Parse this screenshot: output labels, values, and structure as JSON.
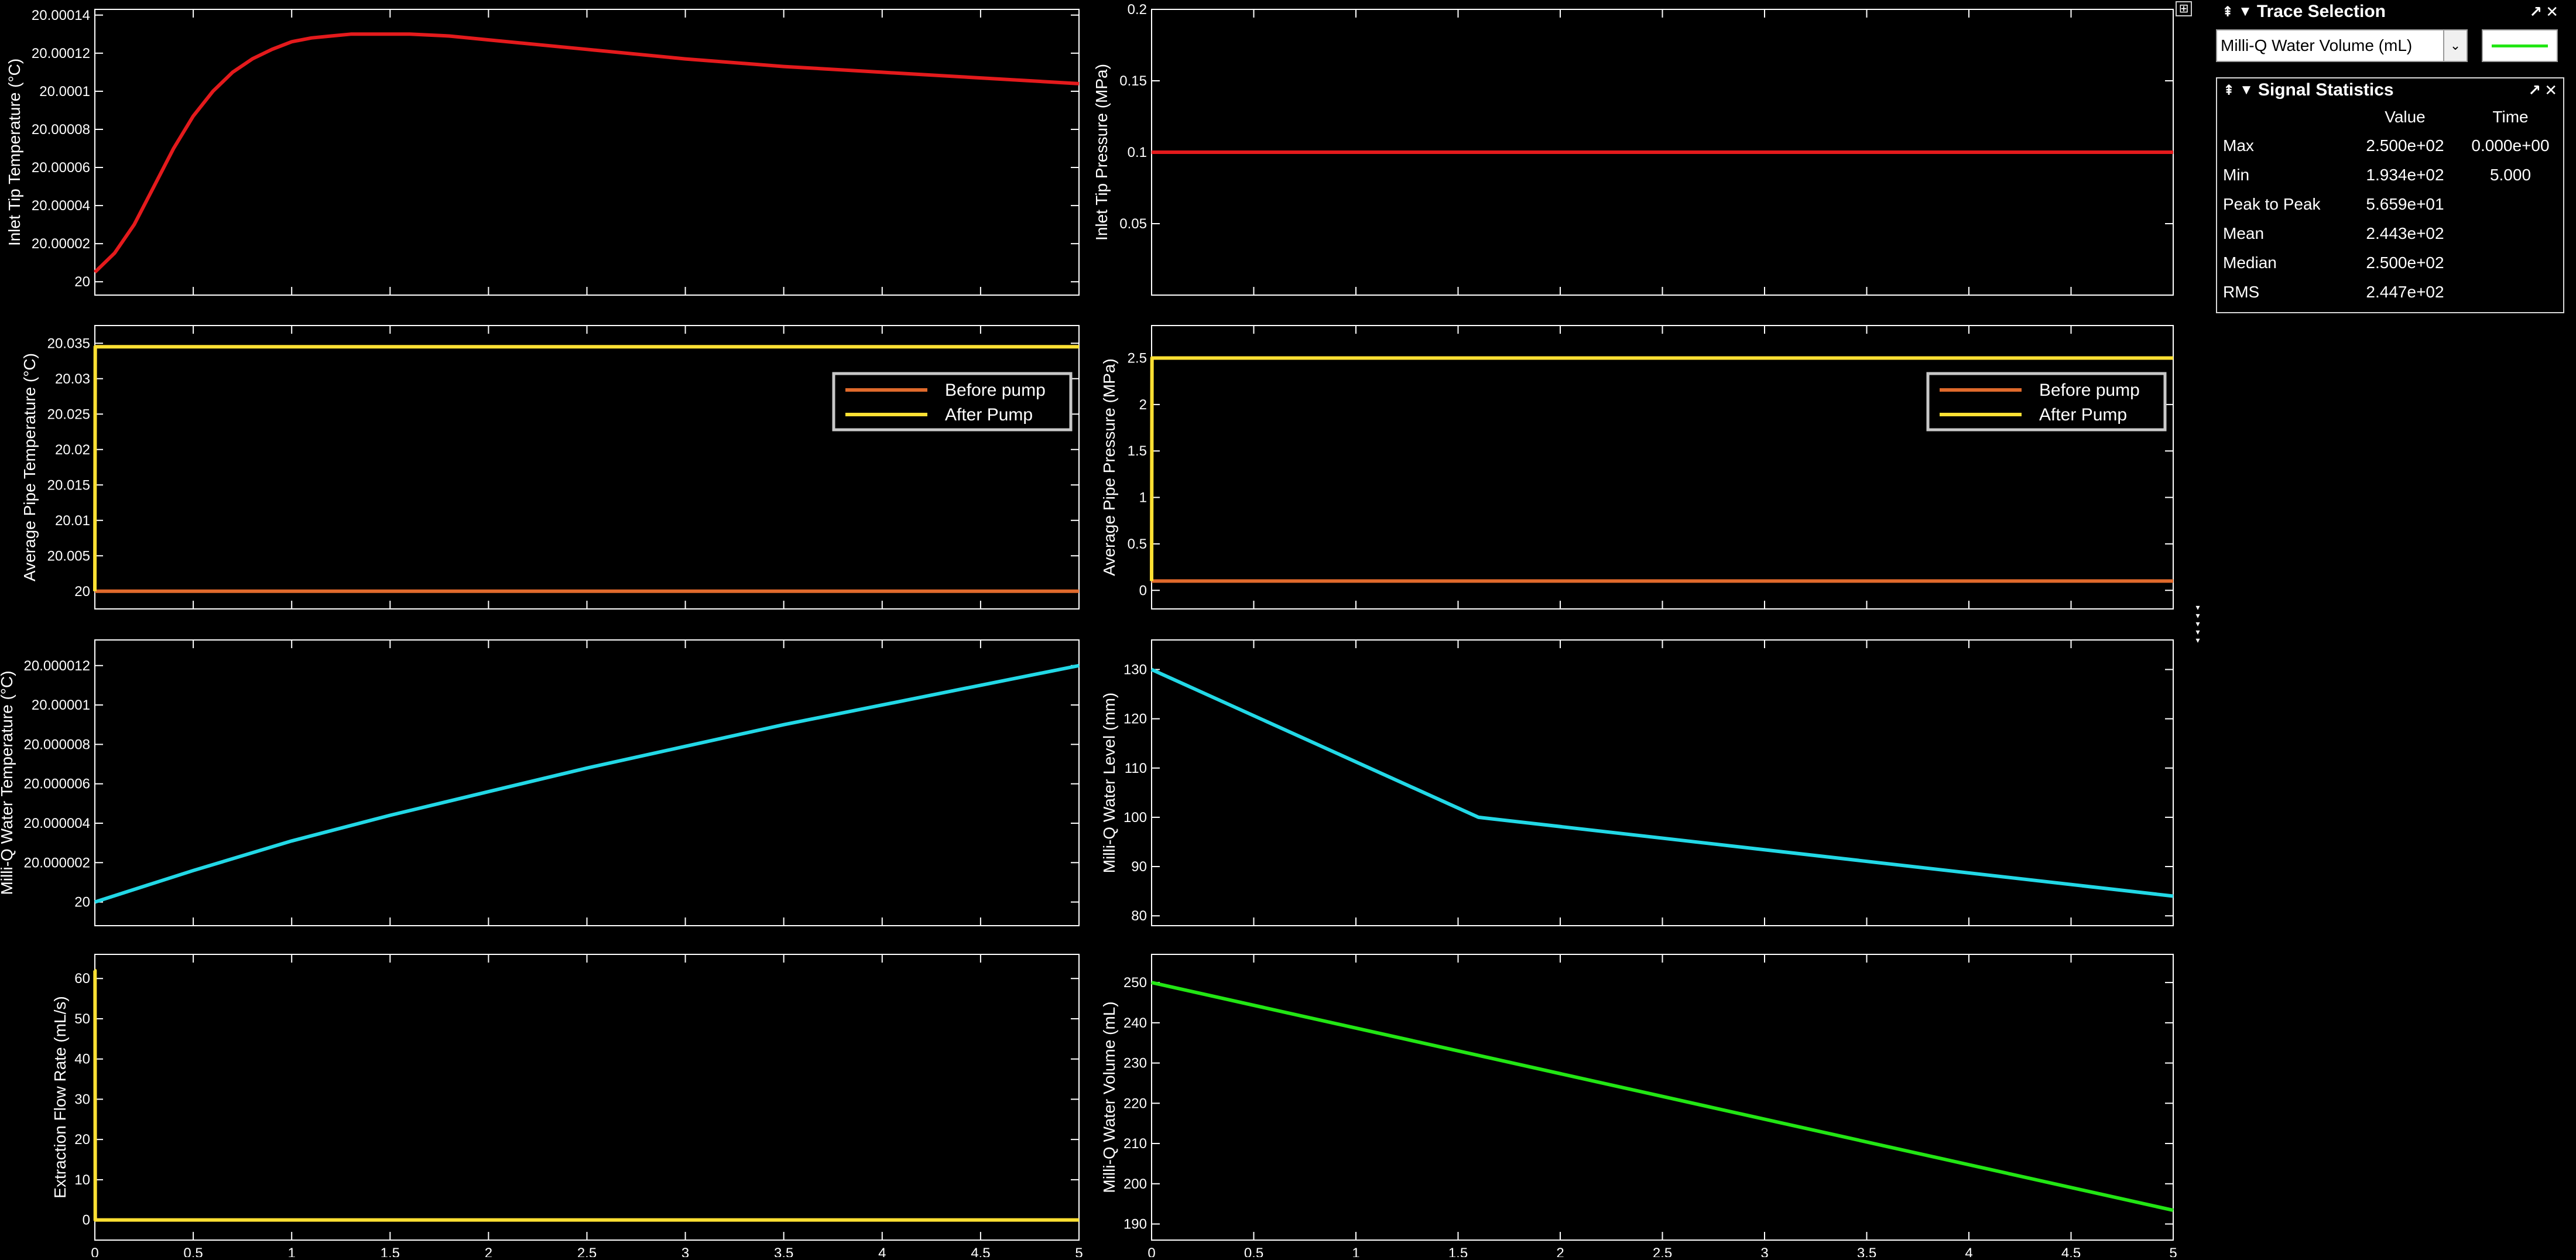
{
  "colors": {
    "red": "#e41a1c",
    "orange": "#e06a2c",
    "yellow": "#ffe033",
    "cyan": "#22d8e6",
    "green": "#22e614",
    "axis": "#ffffff",
    "background": "#000000"
  },
  "icons": {
    "undock": "undock-icon",
    "collapse": "collapse-arrow-icon",
    "expand": "expand-icon",
    "close": "close-icon"
  },
  "trace_selection": {
    "title": "Trace Selection",
    "selected": "Milli-Q Water Volume (mL)",
    "swatch_color": "#22e614"
  },
  "signal_statistics": {
    "title": "Signal Statistics",
    "columns": [
      "Value",
      "Time"
    ],
    "rows": [
      {
        "label": "Max",
        "value": "2.500e+02",
        "time": "0.000e+00"
      },
      {
        "label": "Min",
        "value": "1.934e+02",
        "time": "5.000"
      },
      {
        "label": "Peak to Peak",
        "value": "5.659e+01",
        "time": ""
      },
      {
        "label": "Mean",
        "value": "2.443e+02",
        "time": ""
      },
      {
        "label": "Median",
        "value": "2.500e+02",
        "time": ""
      },
      {
        "label": "RMS",
        "value": "2.447e+02",
        "time": ""
      }
    ]
  },
  "chart_data": [
    {
      "id": "inlet-tip-temperature",
      "type": "line",
      "ylabel": "Inlet Tip Temperature (°C)",
      "xlim": [
        0,
        5
      ],
      "ylim": [
        19.999993,
        20.000143
      ],
      "yticks": [
        20,
        20.00002,
        20.00004,
        20.00006,
        20.00008,
        20.0001,
        20.00012,
        20.00014
      ],
      "ytick_labels": [
        "20",
        "20.00002",
        "20.00004",
        "20.00006",
        "20.00008",
        "20.0001",
        "20.00012",
        "20.00014"
      ],
      "xticks": [
        0,
        0.5,
        1,
        1.5,
        2,
        2.5,
        3,
        3.5,
        4,
        4.5,
        5
      ],
      "show_xtick_labels": false,
      "series": [
        {
          "color": "red",
          "x": [
            0,
            0.1,
            0.2,
            0.3,
            0.4,
            0.5,
            0.6,
            0.7,
            0.8,
            0.9,
            1.0,
            1.1,
            1.2,
            1.3,
            1.4,
            1.5,
            1.6,
            1.8,
            2.0,
            2.5,
            3.0,
            3.5,
            4.0,
            4.5,
            5.0
          ],
          "y": [
            20.000005,
            20.000015,
            20.00003,
            20.00005,
            20.00007,
            20.000087,
            20.0001,
            20.00011,
            20.000117,
            20.000122,
            20.000126,
            20.000128,
            20.000129,
            20.00013,
            20.00013,
            20.00013,
            20.00013,
            20.000129,
            20.000127,
            20.000122,
            20.000117,
            20.000113,
            20.00011,
            20.000107,
            20.000104
          ]
        }
      ]
    },
    {
      "id": "inlet-tip-pressure",
      "type": "line",
      "ylabel": "Inlet Tip Pressure (MPa)",
      "xlim": [
        0,
        5
      ],
      "ylim": [
        0,
        0.2
      ],
      "yticks": [
        0.05,
        0.1,
        0.15,
        0.2
      ],
      "ytick_labels": [
        "0.05",
        "0.1",
        "0.15",
        "0.2"
      ],
      "xticks": [
        0,
        0.5,
        1,
        1.5,
        2,
        2.5,
        3,
        3.5,
        4,
        4.5,
        5
      ],
      "show_xtick_labels": false,
      "series": [
        {
          "color": "red",
          "x": [
            0,
            5
          ],
          "y": [
            0.1,
            0.1
          ]
        }
      ]
    },
    {
      "id": "average-pipe-temperature",
      "type": "line",
      "ylabel": "Average Pipe Temperature (°C)",
      "xlim": [
        0,
        5
      ],
      "ylim": [
        19.9975,
        20.0375
      ],
      "yticks": [
        20,
        20.005,
        20.01,
        20.015,
        20.02,
        20.025,
        20.03,
        20.035
      ],
      "ytick_labels": [
        "20",
        "20.005",
        "20.01",
        "20.015",
        "20.02",
        "20.025",
        "20.03",
        "20.035"
      ],
      "xticks": [
        0,
        0.5,
        1,
        1.5,
        2,
        2.5,
        3,
        3.5,
        4,
        4.5,
        5
      ],
      "show_xtick_labels": false,
      "legend": "top-right",
      "series": [
        {
          "name": "Before pump",
          "color": "orange",
          "x": [
            0,
            5
          ],
          "y": [
            20,
            20
          ]
        },
        {
          "name": "After Pump",
          "color": "yellow",
          "x": [
            0,
            0.002,
            5
          ],
          "y": [
            20,
            20.0345,
            20.0345
          ]
        }
      ]
    },
    {
      "id": "average-pipe-pressure",
      "type": "line",
      "ylabel": "Average Pipe Pressure (MPa)",
      "xlim": [
        0,
        5
      ],
      "ylim": [
        -0.2,
        2.85
      ],
      "yticks": [
        0,
        0.5,
        1,
        1.5,
        2,
        2.5
      ],
      "ytick_labels": [
        "0",
        "0.5",
        "1",
        "1.5",
        "2",
        "2.5"
      ],
      "xticks": [
        0,
        0.5,
        1,
        1.5,
        2,
        2.5,
        3,
        3.5,
        4,
        4.5,
        5
      ],
      "show_xtick_labels": false,
      "legend": "top-right",
      "series": [
        {
          "name": "Before pump",
          "color": "orange",
          "x": [
            0,
            5
          ],
          "y": [
            0.1,
            0.1
          ]
        },
        {
          "name": "After Pump",
          "color": "yellow",
          "x": [
            0,
            0.002,
            5
          ],
          "y": [
            0.1,
            2.5,
            2.5
          ]
        }
      ]
    },
    {
      "id": "milli-q-water-temperature",
      "type": "line",
      "ylabel": "Milli-Q Water Temperature (°C)",
      "xlim": [
        0,
        5
      ],
      "ylim": [
        19.9999988,
        20.0000133
      ],
      "yticks": [
        20,
        20.000002,
        20.000004,
        20.000006,
        20.000008,
        20.00001,
        20.000012
      ],
      "ytick_labels": [
        "20",
        "20.000002",
        "20.000004",
        "20.000006",
        "20.000008",
        "20.00001",
        "20.000012"
      ],
      "xticks": [
        0,
        0.5,
        1,
        1.5,
        2,
        2.5,
        3,
        3.5,
        4,
        4.5,
        5
      ],
      "show_xtick_labels": false,
      "series": [
        {
          "color": "cyan",
          "x": [
            0,
            0.5,
            1,
            1.5,
            2,
            2.5,
            3,
            3.5,
            4,
            4.5,
            5
          ],
          "y": [
            20,
            20.0000016,
            20.0000031,
            20.0000044,
            20.0000056,
            20.0000068,
            20.0000079,
            20.000009,
            20.00001,
            20.000011,
            20.000012
          ]
        }
      ]
    },
    {
      "id": "milli-q-water-level",
      "type": "line",
      "ylabel": "Milli-Q Water Level (mm)",
      "xlim": [
        0,
        5
      ],
      "ylim": [
        78,
        136
      ],
      "yticks": [
        80,
        90,
        100,
        110,
        120,
        130
      ],
      "ytick_labels": [
        "80",
        "90",
        "100",
        "110",
        "120",
        "130"
      ],
      "xticks": [
        0,
        0.5,
        1,
        1.5,
        2,
        2.5,
        3,
        3.5,
        4,
        4.5,
        5
      ],
      "show_xtick_labels": false,
      "series": [
        {
          "color": "cyan",
          "x": [
            0,
            1.6,
            5
          ],
          "y": [
            130,
            100,
            84
          ]
        }
      ]
    },
    {
      "id": "extraction-flow-rate",
      "type": "line",
      "ylabel": "Extraction Flow Rate (mL/s)",
      "xlim": [
        0,
        5
      ],
      "ylim": [
        -5,
        66
      ],
      "yticks": [
        0,
        10,
        20,
        30,
        40,
        50,
        60
      ],
      "ytick_labels": [
        "0",
        "10",
        "20",
        "30",
        "40",
        "50",
        "60"
      ],
      "xticks": [
        0,
        0.5,
        1,
        1.5,
        2,
        2.5,
        3,
        3.5,
        4,
        4.5,
        5
      ],
      "xtick_labels": [
        "0",
        "0.5",
        "1",
        "1.5",
        "2",
        "2.5",
        "3",
        "3.5",
        "4",
        "4.5",
        "5"
      ],
      "show_xtick_labels": true,
      "series": [
        {
          "color": "yellow",
          "x": [
            0,
            0.001,
            0.002,
            5
          ],
          "y": [
            62,
            62,
            0,
            0
          ]
        }
      ]
    },
    {
      "id": "milli-q-water-volume",
      "type": "line",
      "ylabel": "Milli-Q Water Volume (mL)",
      "xlim": [
        0,
        5
      ],
      "ylim": [
        186,
        257
      ],
      "yticks": [
        190,
        200,
        210,
        220,
        230,
        240,
        250
      ],
      "ytick_labels": [
        "190",
        "200",
        "210",
        "220",
        "230",
        "240",
        "250"
      ],
      "xticks": [
        0,
        0.5,
        1,
        1.5,
        2,
        2.5,
        3,
        3.5,
        4,
        4.5,
        5
      ],
      "xtick_labels": [
        "0",
        "0.5",
        "1",
        "1.5",
        "2",
        "2.5",
        "3",
        "3.5",
        "4",
        "4.5",
        "5"
      ],
      "show_xtick_labels": true,
      "series": [
        {
          "color": "green",
          "x": [
            0,
            5
          ],
          "y": [
            250,
            193.4
          ]
        }
      ]
    }
  ]
}
